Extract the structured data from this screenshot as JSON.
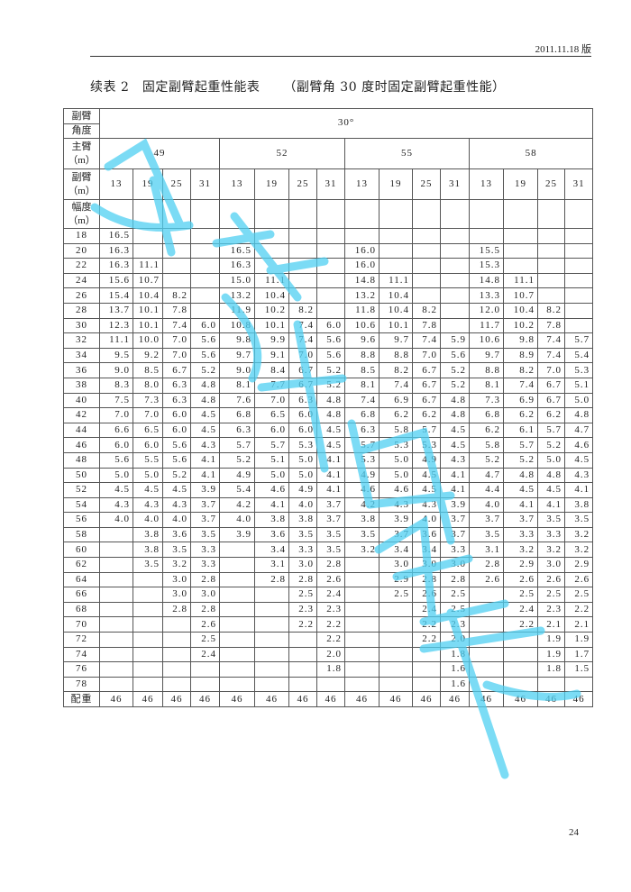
{
  "header": {
    "edition": "2011.11.18 版"
  },
  "title": {
    "main": "续表 2　固定副臂起重性能表",
    "sub": "（副臂角 30 度时固定副臂起重性能）"
  },
  "table": {
    "jib_angle_label": [
      "副臂",
      "角度"
    ],
    "jib_angle_value": "30°",
    "main_boom_label": [
      "主臂",
      "（m）"
    ],
    "main_boom_lengths": [
      "49",
      "52",
      "55",
      "58"
    ],
    "jib_label": [
      "副臂",
      "（m）"
    ],
    "jib_lengths": [
      "13",
      "19",
      "25",
      "31"
    ],
    "radius_label": [
      "幅度",
      "（m）"
    ],
    "counterweight_label": "配重",
    "counterweight_values": [
      "46",
      "46",
      "46",
      "46",
      "46",
      "46",
      "46",
      "46",
      "46",
      "46",
      "46",
      "46",
      "46",
      "46",
      "46",
      "46"
    ],
    "rows": [
      {
        "r": "18",
        "v": [
          "16.5",
          "",
          "",
          "",
          "",
          "",
          "",
          "",
          "",
          "",
          "",
          "",
          "",
          "",
          "",
          ""
        ]
      },
      {
        "r": "20",
        "v": [
          "16.3",
          "",
          "",
          "",
          "16.5",
          "",
          "",
          "",
          "16.0",
          "",
          "",
          "",
          "15.5",
          "",
          "",
          ""
        ]
      },
      {
        "r": "22",
        "v": [
          "16.3",
          "11.1",
          "",
          "",
          "16.3",
          "",
          "",
          "",
          "16.0",
          "",
          "",
          "",
          "15.3",
          "",
          "",
          ""
        ]
      },
      {
        "r": "24",
        "v": [
          "15.6",
          "10.7",
          "",
          "",
          "15.0",
          "11.1",
          "",
          "",
          "14.8",
          "11.1",
          "",
          "",
          "14.8",
          "11.1",
          "",
          ""
        ]
      },
      {
        "r": "26",
        "v": [
          "15.4",
          "10.4",
          "8.2",
          "",
          "13.2",
          "10.4",
          "",
          "",
          "13.2",
          "10.4",
          "",
          "",
          "13.3",
          "10.7",
          "",
          ""
        ]
      },
      {
        "r": "28",
        "v": [
          "13.7",
          "10.1",
          "7.8",
          "",
          "11.9",
          "10.2",
          "8.2",
          "",
          "11.8",
          "10.4",
          "8.2",
          "",
          "12.0",
          "10.4",
          "8.2",
          ""
        ]
      },
      {
        "r": "30",
        "v": [
          "12.3",
          "10.1",
          "7.4",
          "6.0",
          "10.8",
          "10.1",
          "7.4",
          "6.0",
          "10.6",
          "10.1",
          "7.8",
          "",
          "11.7",
          "10.2",
          "7.8",
          ""
        ]
      },
      {
        "r": "32",
        "v": [
          "11.1",
          "10.0",
          "7.0",
          "5.6",
          "9.8",
          "9.9",
          "7.4",
          "5.6",
          "9.6",
          "9.7",
          "7.4",
          "5.9",
          "10.6",
          "9.8",
          "7.4",
          "5.7"
        ]
      },
      {
        "r": "34",
        "v": [
          "9.5",
          "9.2",
          "7.0",
          "5.6",
          "9.7",
          "9.1",
          "7.0",
          "5.6",
          "8.8",
          "8.8",
          "7.0",
          "5.6",
          "9.7",
          "8.9",
          "7.4",
          "5.4"
        ]
      },
      {
        "r": "36",
        "v": [
          "9.0",
          "8.5",
          "6.7",
          "5.2",
          "9.0",
          "8.4",
          "6.7",
          "5.2",
          "8.5",
          "8.2",
          "6.7",
          "5.2",
          "8.8",
          "8.2",
          "7.0",
          "5.3"
        ]
      },
      {
        "r": "38",
        "v": [
          "8.3",
          "8.0",
          "6.3",
          "4.8",
          "8.1",
          "7.7",
          "6.7",
          "5.2",
          "8.1",
          "7.4",
          "6.7",
          "5.2",
          "8.1",
          "7.4",
          "6.7",
          "5.1"
        ]
      },
      {
        "r": "40",
        "v": [
          "7.5",
          "7.3",
          "6.3",
          "4.8",
          "7.6",
          "7.0",
          "6.3",
          "4.8",
          "7.4",
          "6.9",
          "6.7",
          "4.8",
          "7.3",
          "6.9",
          "6.7",
          "5.0"
        ]
      },
      {
        "r": "42",
        "v": [
          "7.0",
          "7.0",
          "6.0",
          "4.5",
          "6.8",
          "6.5",
          "6.0",
          "4.8",
          "6.8",
          "6.2",
          "6.2",
          "4.8",
          "6.8",
          "6.2",
          "6.2",
          "4.8"
        ]
      },
      {
        "r": "44",
        "v": [
          "6.6",
          "6.5",
          "6.0",
          "4.5",
          "6.3",
          "6.0",
          "6.0",
          "4.5",
          "6.3",
          "5.8",
          "5.7",
          "4.5",
          "6.2",
          "6.1",
          "5.7",
          "4.7"
        ]
      },
      {
        "r": "46",
        "v": [
          "6.0",
          "6.0",
          "5.6",
          "4.3",
          "5.7",
          "5.7",
          "5.3",
          "4.5",
          "5.7",
          "5.3",
          "5.3",
          "4.5",
          "5.8",
          "5.7",
          "5.2",
          "4.6"
        ]
      },
      {
        "r": "48",
        "v": [
          "5.6",
          "5.5",
          "5.6",
          "4.1",
          "5.2",
          "5.1",
          "5.0",
          "4.1",
          "5.3",
          "5.0",
          "4.9",
          "4.3",
          "5.2",
          "5.2",
          "5.0",
          "4.5"
        ]
      },
      {
        "r": "50",
        "v": [
          "5.0",
          "5.0",
          "5.2",
          "4.1",
          "4.9",
          "5.0",
          "5.0",
          "4.1",
          "4.9",
          "5.0",
          "4.5",
          "4.1",
          "4.7",
          "4.8",
          "4.8",
          "4.3"
        ]
      },
      {
        "r": "52",
        "v": [
          "4.5",
          "4.5",
          "4.5",
          "3.9",
          "5.4",
          "4.6",
          "4.9",
          "4.1",
          "4.6",
          "4.6",
          "4.5",
          "4.1",
          "4.4",
          "4.5",
          "4.5",
          "4.1"
        ]
      },
      {
        "r": "54",
        "v": [
          "4.3",
          "4.3",
          "4.3",
          "3.7",
          "4.2",
          "4.1",
          "4.0",
          "3.7",
          "4.2",
          "4.3",
          "4.3",
          "3.9",
          "4.0",
          "4.1",
          "4.1",
          "3.8"
        ]
      },
      {
        "r": "56",
        "v": [
          "4.0",
          "4.0",
          "4.0",
          "3.7",
          "4.0",
          "3.8",
          "3.8",
          "3.7",
          "3.8",
          "3.9",
          "4.0",
          "3.7",
          "3.7",
          "3.7",
          "3.5",
          "3.5"
        ]
      },
      {
        "r": "58",
        "v": [
          "",
          "3.8",
          "3.6",
          "3.5",
          "3.9",
          "3.6",
          "3.5",
          "3.5",
          "3.5",
          "3.7",
          "3.6",
          "3.7",
          "3.5",
          "3.3",
          "3.3",
          "3.2"
        ]
      },
      {
        "r": "60",
        "v": [
          "",
          "3.8",
          "3.5",
          "3.3",
          "",
          "3.4",
          "3.3",
          "3.5",
          "3.2",
          "3.4",
          "3.4",
          "3.3",
          "3.1",
          "3.2",
          "3.2",
          "3.2"
        ]
      },
      {
        "r": "62",
        "v": [
          "",
          "3.5",
          "3.2",
          "3.3",
          "",
          "3.1",
          "3.0",
          "2.8",
          "",
          "3.0",
          "3.0",
          "3.0",
          "2.8",
          "2.9",
          "3.0",
          "2.9"
        ]
      },
      {
        "r": "64",
        "v": [
          "",
          "",
          "3.0",
          "2.8",
          "",
          "2.8",
          "2.8",
          "2.6",
          "",
          "2.9",
          "2.8",
          "2.8",
          "2.6",
          "2.6",
          "2.6",
          "2.6"
        ]
      },
      {
        "r": "66",
        "v": [
          "",
          "",
          "3.0",
          "3.0",
          "",
          "",
          "2.5",
          "2.4",
          "",
          "2.5",
          "2.6",
          "2.5",
          "",
          "2.5",
          "2.5",
          "2.5"
        ]
      },
      {
        "r": "68",
        "v": [
          "",
          "",
          "2.8",
          "2.8",
          "",
          "",
          "2.3",
          "2.3",
          "",
          "",
          "2.4",
          "2.5",
          "",
          "2.4",
          "2.3",
          "2.2"
        ]
      },
      {
        "r": "70",
        "v": [
          "",
          "",
          "",
          "2.6",
          "",
          "",
          "2.2",
          "2.2",
          "",
          "",
          "2.2",
          "2.3",
          "",
          "2.2",
          "2.1",
          "2.1"
        ]
      },
      {
        "r": "72",
        "v": [
          "",
          "",
          "",
          "2.5",
          "",
          "",
          "",
          "2.2",
          "",
          "",
          "2.2",
          "2.0",
          "",
          "",
          "1.9",
          "1.9"
        ]
      },
      {
        "r": "74",
        "v": [
          "",
          "",
          "",
          "2.4",
          "",
          "",
          "",
          "2.0",
          "",
          "",
          "",
          "1.8",
          "",
          "",
          "1.9",
          "1.7"
        ]
      },
      {
        "r": "76",
        "v": [
          "",
          "",
          "",
          "",
          "",
          "",
          "",
          "1.8",
          "",
          "",
          "",
          "1.6",
          "",
          "",
          "1.8",
          "1.5"
        ]
      },
      {
        "r": "78",
        "v": [
          "",
          "",
          "",
          "",
          "",
          "",
          "",
          "",
          "",
          "",
          "",
          "1.6",
          "",
          "",
          "",
          ""
        ]
      }
    ]
  },
  "watermark": {
    "color": "#4fd0f2"
  },
  "footer": {
    "page_number": "24"
  }
}
